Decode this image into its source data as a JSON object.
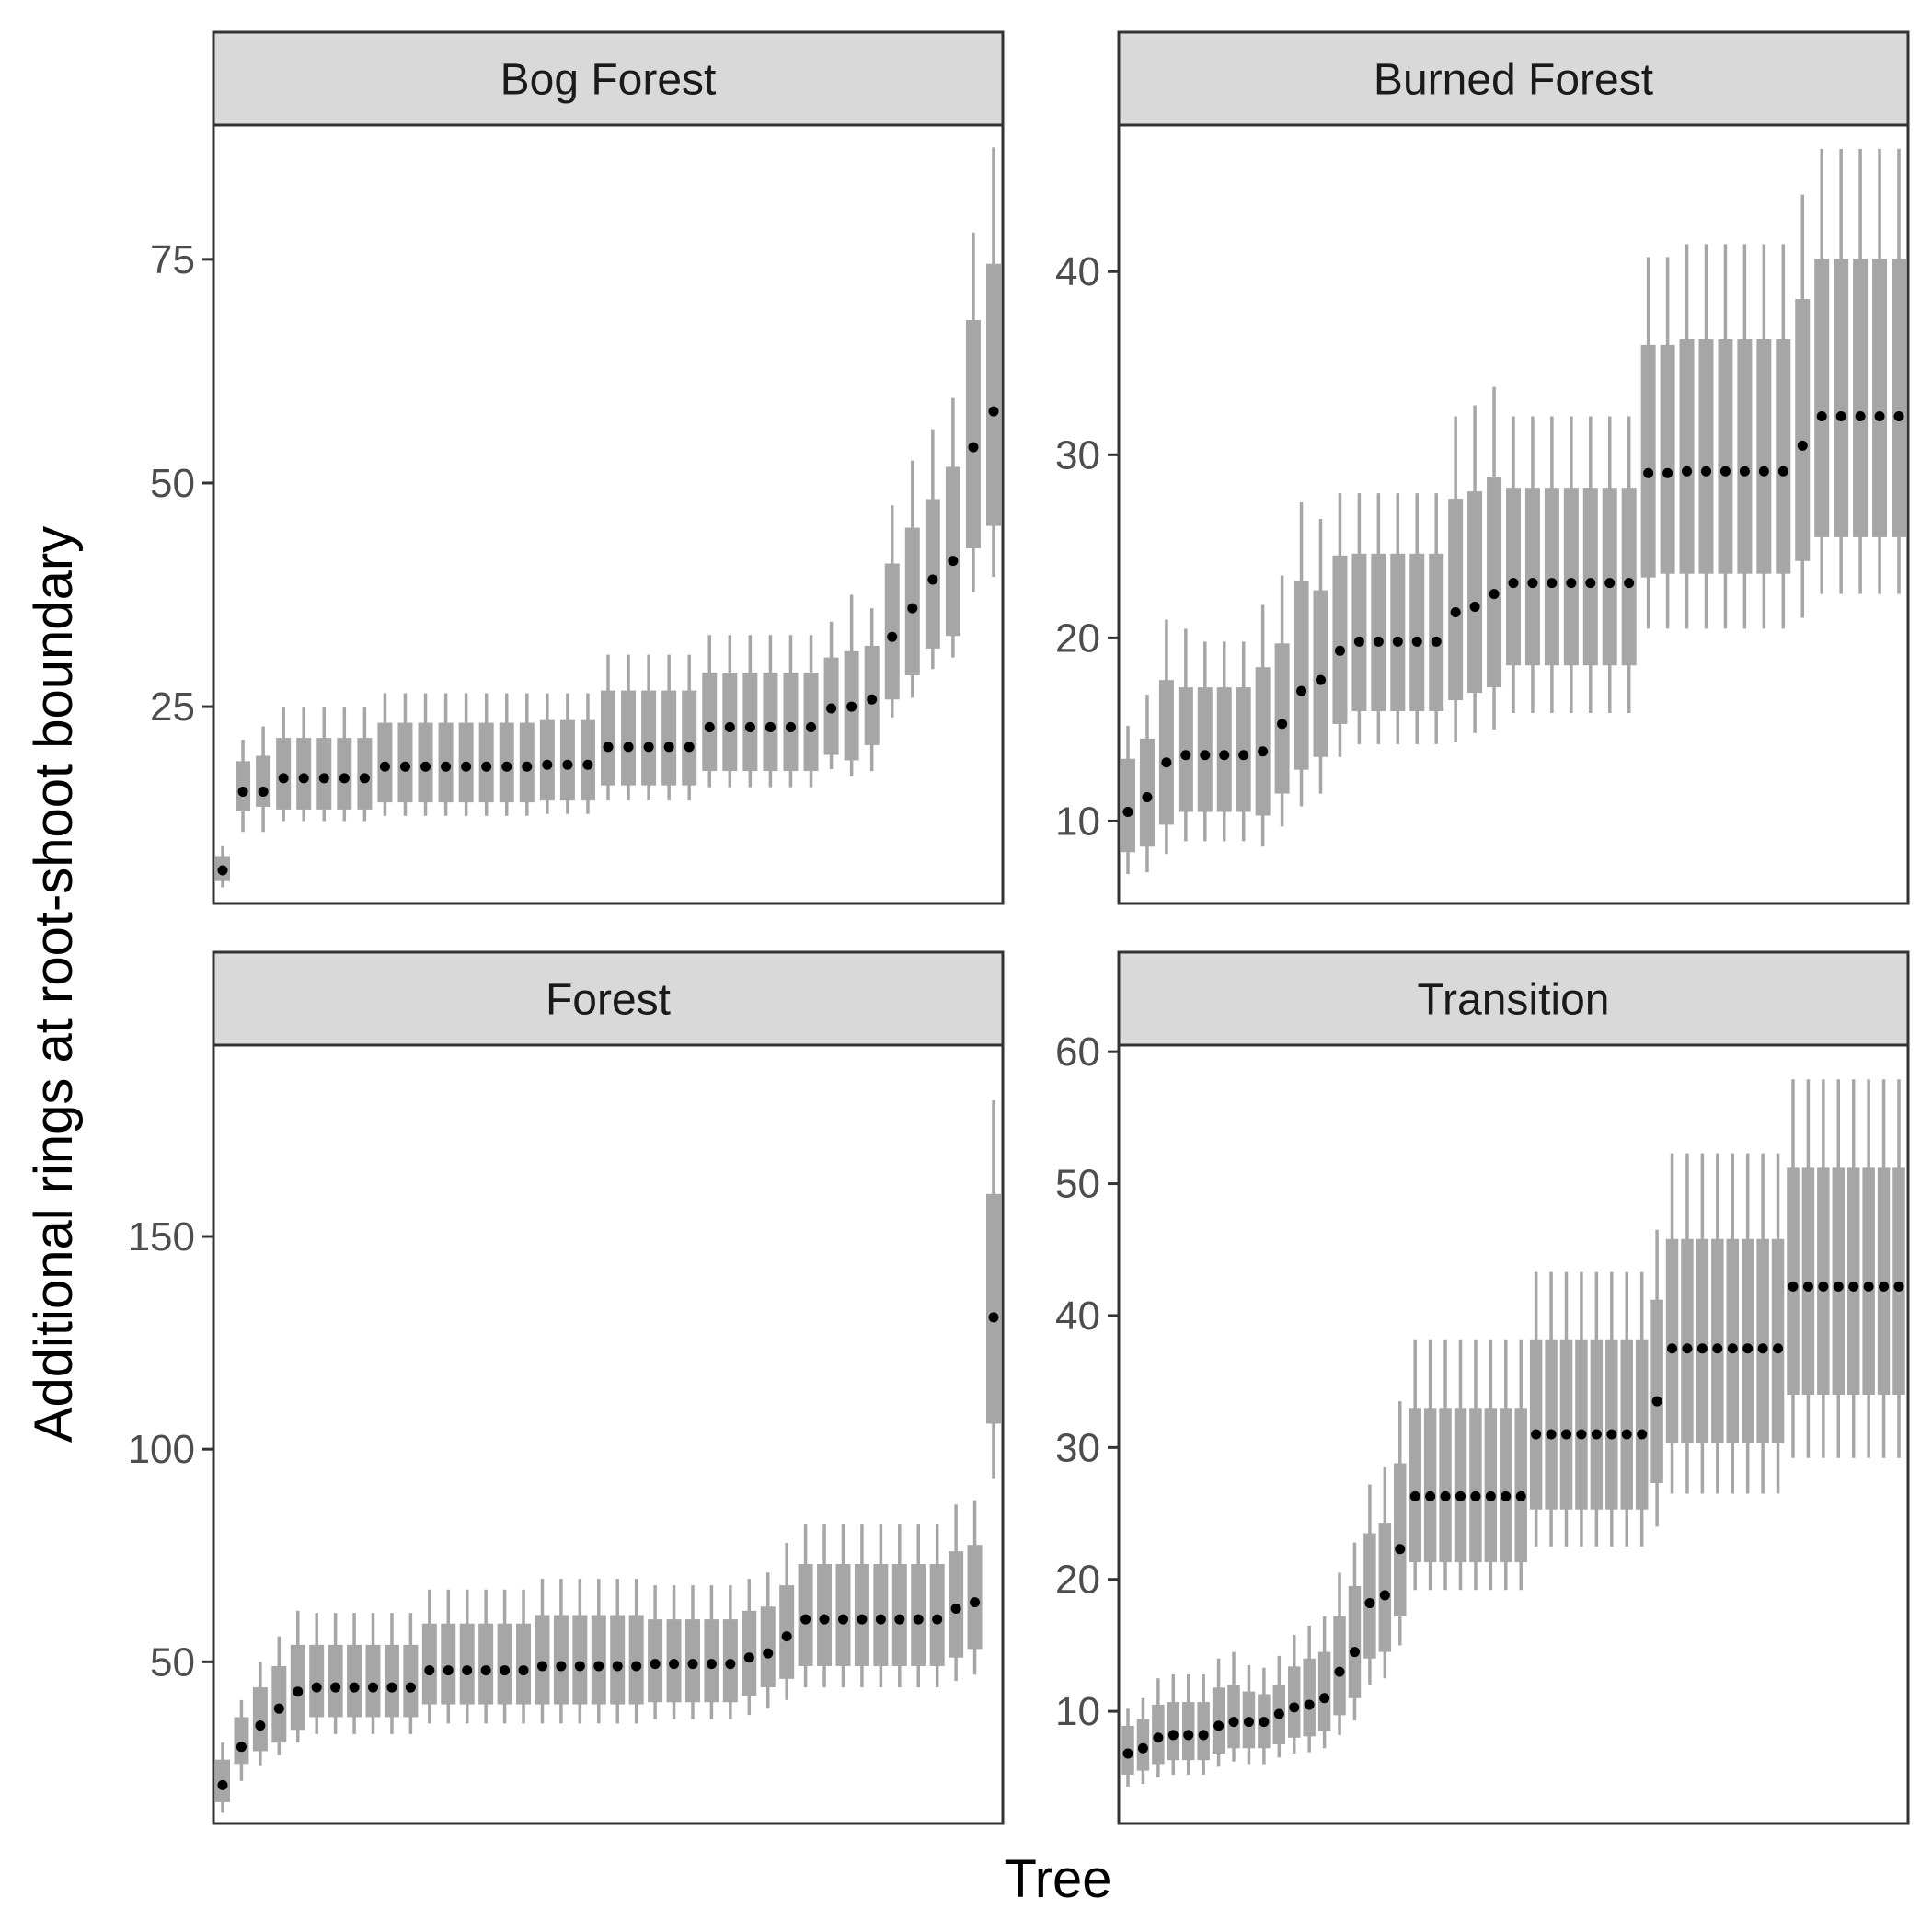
{
  "figure": {
    "x_title": "Tree",
    "y_title": "Additional rings at root-shoot boundary"
  },
  "colors": {
    "range_bar": "#a6a6a6",
    "point": "#000000",
    "strip_fill": "#d9d9d9",
    "panel_border": "#333333"
  },
  "chart_data": [
    {
      "type": "pointrange",
      "title": "Bog Forest",
      "ylim": [
        3,
        90
      ],
      "yticks": [
        25,
        50,
        75
      ],
      "median": [
        6.7,
        15.5,
        15.5,
        17,
        17,
        17,
        17,
        17,
        18.3,
        18.3,
        18.3,
        18.3,
        18.3,
        18.3,
        18.3,
        18.3,
        18.5,
        18.5,
        18.5,
        20.5,
        20.5,
        20.5,
        20.5,
        20.5,
        22.7,
        22.7,
        22.7,
        22.7,
        22.7,
        22.7,
        24.8,
        25,
        25.8,
        32.8,
        36,
        39.2,
        41.3,
        54,
        58
      ],
      "inner_low": [
        5.5,
        13.3,
        13.8,
        13.5,
        13.5,
        13.5,
        13.5,
        13.5,
        14.3,
        14.3,
        14.3,
        14.3,
        14.3,
        14.3,
        14.3,
        14.3,
        14.5,
        14.5,
        14.5,
        16.2,
        16.2,
        16.2,
        16.2,
        16.2,
        17.8,
        17.8,
        17.8,
        17.8,
        17.8,
        17.8,
        19.6,
        19,
        20.7,
        25.8,
        28.5,
        31.5,
        32.9,
        42.7,
        45.2
      ],
      "inner_high": [
        8.3,
        18.9,
        19.5,
        21.5,
        21.5,
        21.5,
        21.5,
        21.5,
        23.2,
        23.2,
        23.2,
        23.2,
        23.2,
        23.2,
        23.2,
        23.2,
        23.5,
        23.5,
        23.5,
        26.8,
        26.8,
        26.8,
        26.8,
        26.8,
        28.8,
        28.8,
        28.8,
        28.8,
        28.8,
        28.8,
        30.5,
        31.2,
        31.8,
        41,
        45,
        48.2,
        51.8,
        68.2,
        74.5
      ],
      "outer_low": [
        4.8,
        11,
        11,
        12.2,
        12.2,
        12.2,
        12.2,
        12.2,
        12.8,
        12.8,
        12.8,
        12.8,
        12.8,
        12.8,
        12.8,
        12.8,
        13,
        13,
        13,
        14.5,
        14.5,
        14.5,
        14.5,
        14.5,
        16,
        16,
        16,
        16,
        16,
        16,
        18,
        17.2,
        17.8,
        23.8,
        26,
        29.2,
        30.5,
        37.8,
        39.5
      ],
      "outer_high": [
        9.4,
        21.3,
        22.8,
        25,
        25,
        25,
        25,
        25,
        26.5,
        26.5,
        26.5,
        26.5,
        26.5,
        26.5,
        26.5,
        26.5,
        26.5,
        26.5,
        26.5,
        30.8,
        30.8,
        30.8,
        30.8,
        30.8,
        33,
        33,
        33,
        33,
        33,
        33,
        34.5,
        37.5,
        36,
        47.5,
        52.5,
        56,
        59.5,
        78,
        87.5
      ]
    },
    {
      "type": "pointrange",
      "title": "Burned Forest",
      "ylim": [
        5.5,
        48
      ],
      "yticks": [
        10,
        20,
        30,
        40
      ],
      "median": [
        10.5,
        11.3,
        13.2,
        13.6,
        13.6,
        13.6,
        13.6,
        13.8,
        15.3,
        17.1,
        17.7,
        19.3,
        19.8,
        19.8,
        19.8,
        19.8,
        19.8,
        21.4,
        21.7,
        22.4,
        23,
        23,
        23,
        23,
        23,
        23,
        23,
        29,
        29,
        29.1,
        29.1,
        29.1,
        29.1,
        29.1,
        29.1,
        30.5,
        32.1,
        32.1,
        32.1,
        32.1,
        32.1
      ],
      "inner_low": [
        8.3,
        8.6,
        9.8,
        10.5,
        10.5,
        10.5,
        10.5,
        10.3,
        11.5,
        12.8,
        13.5,
        15.3,
        16,
        16,
        16,
        16,
        16,
        16.6,
        17,
        17.3,
        18.5,
        18.5,
        18.5,
        18.5,
        18.5,
        18.5,
        18.5,
        23.3,
        23.5,
        23.5,
        23.5,
        23.5,
        23.5,
        23.5,
        23.5,
        24.2,
        25.5,
        25.5,
        25.5,
        25.5,
        25.5
      ],
      "inner_high": [
        13.4,
        14.5,
        17.7,
        17.3,
        17.3,
        17.3,
        17.3,
        18.4,
        19.7,
        23.1,
        22.6,
        24.5,
        24.6,
        24.6,
        24.6,
        24.6,
        24.6,
        27.6,
        28,
        28.8,
        28.2,
        28.2,
        28.2,
        28.2,
        28.2,
        28.2,
        28.2,
        36,
        36,
        36.3,
        36.3,
        36.3,
        36.3,
        36.3,
        36.3,
        38.5,
        40.7,
        40.7,
        40.7,
        40.7,
        40.7
      ],
      "outer_low": [
        7.1,
        7.2,
        8.2,
        8.9,
        8.9,
        8.9,
        8.9,
        8.6,
        9.7,
        10.8,
        11.5,
        13.5,
        14.2,
        14.2,
        14.2,
        14.2,
        14.2,
        14.3,
        14.8,
        15,
        15.9,
        15.9,
        15.9,
        15.9,
        15.9,
        15.9,
        15.9,
        20.5,
        20.5,
        20.5,
        20.5,
        20.5,
        20.5,
        20.5,
        20.5,
        21.1,
        22.4,
        22.4,
        22.4,
        22.4,
        22.4
      ],
      "outer_high": [
        15.2,
        16.9,
        21,
        20.5,
        19.8,
        19.8,
        19.8,
        21.8,
        23.4,
        27.4,
        26.5,
        27.9,
        27.9,
        27.9,
        27.9,
        27.9,
        27.9,
        32.1,
        32.7,
        33.7,
        32.1,
        32.1,
        32.1,
        32.1,
        32.1,
        32.1,
        32.1,
        40.8,
        40.8,
        41.5,
        41.5,
        41.5,
        41.5,
        41.5,
        41.5,
        44.2,
        46.7,
        46.7,
        46.7,
        46.7,
        46.7
      ]
    },
    {
      "type": "pointrange",
      "title": "Forest",
      "ylim": [
        12,
        195
      ],
      "yticks": [
        50,
        100,
        150
      ],
      "median": [
        21,
        30,
        35,
        39,
        43,
        44,
        44,
        44,
        44,
        44,
        44,
        48,
        48,
        48,
        48,
        48,
        48,
        49,
        49,
        49,
        49,
        49,
        49,
        49.5,
        49.5,
        49.5,
        49.5,
        49.5,
        51,
        52,
        56,
        60,
        60,
        60,
        60,
        60,
        60,
        60,
        60,
        62.5,
        64,
        131
      ],
      "inner_low": [
        17,
        26,
        29,
        31,
        34,
        37,
        37,
        37,
        37,
        37,
        37,
        40,
        40,
        40,
        40,
        40,
        40,
        40,
        40,
        40,
        40,
        40,
        40,
        40.5,
        40.5,
        40.5,
        40.5,
        40.5,
        42,
        44,
        46,
        49,
        49,
        49,
        49,
        49,
        49,
        49,
        49,
        51,
        53,
        106
      ],
      "inner_high": [
        27,
        37,
        44,
        49,
        54,
        54,
        54,
        54,
        54,
        54,
        54,
        59,
        59,
        59,
        59,
        59,
        59,
        61,
        61,
        61,
        61,
        61,
        61,
        60,
        60,
        60,
        60,
        60,
        62,
        63,
        68,
        73,
        73,
        73,
        73,
        73,
        73,
        73,
        73,
        76,
        77.5,
        160
      ],
      "outer_low": [
        14.5,
        22,
        25.5,
        28,
        31,
        33,
        33,
        33,
        33,
        33,
        33,
        35.5,
        35.5,
        35.5,
        35.5,
        35.5,
        35.5,
        35.5,
        35.5,
        35.5,
        35.5,
        35.5,
        35.5,
        36.5,
        36.5,
        36.5,
        36.5,
        36.5,
        37.5,
        39,
        41,
        44,
        44,
        44,
        44,
        44,
        44,
        44,
        44,
        45.5,
        47,
        93
      ],
      "outer_high": [
        31,
        41,
        50,
        56,
        62,
        61.5,
        61.5,
        61.5,
        61.5,
        61.5,
        61.5,
        67,
        67,
        67,
        67,
        67,
        67,
        69.5,
        69.5,
        69.5,
        69.5,
        69.5,
        69.5,
        68,
        68,
        68,
        68,
        68,
        69.5,
        71,
        78,
        82.5,
        82.5,
        82.5,
        82.5,
        82.5,
        82.5,
        82.5,
        82.5,
        87,
        88,
        182
      ]
    },
    {
      "type": "pointrange",
      "title": "Transition",
      "ylim": [
        1.5,
        60.5
      ],
      "yticks": [
        10,
        20,
        30,
        40,
        50,
        60
      ],
      "median": [
        6.8,
        7.2,
        8,
        8.2,
        8.2,
        8.2,
        8.9,
        9.2,
        9.2,
        9.2,
        9.8,
        10.3,
        10.5,
        11,
        13,
        14.5,
        18.2,
        18.8,
        22.3,
        26.3,
        26.3,
        26.3,
        26.3,
        26.3,
        26.3,
        26.3,
        26.3,
        31,
        31,
        31,
        31,
        31,
        31,
        31,
        31,
        33.5,
        37.5,
        37.5,
        37.5,
        37.5,
        37.5,
        37.5,
        37.5,
        37.5,
        42.2,
        42.2,
        42.2,
        42.2,
        42.2,
        42.2,
        42.2,
        42.2
      ],
      "inner_low": [
        5.2,
        5.5,
        6,
        6.3,
        6.3,
        6.3,
        6.8,
        7.2,
        7.2,
        7.2,
        7.5,
        8,
        8.1,
        8.5,
        9.7,
        11,
        14,
        14.5,
        17.2,
        21.3,
        21.3,
        21.3,
        21.3,
        21.3,
        21.3,
        21.3,
        21.3,
        25.3,
        25.3,
        25.3,
        25.3,
        25.3,
        25.3,
        25.3,
        25.3,
        27.3,
        30.3,
        30.3,
        30.3,
        30.3,
        30.3,
        30.3,
        30.3,
        30.3,
        34,
        34,
        34,
        34,
        34,
        34,
        34,
        34
      ],
      "inner_high": [
        8.9,
        9.4,
        10.5,
        10.7,
        10.7,
        10.7,
        11.8,
        12,
        11.5,
        11.3,
        12,
        13.4,
        14,
        14.5,
        17.2,
        19.5,
        23.5,
        24.3,
        28.8,
        33,
        33,
        33,
        33,
        33,
        33,
        33,
        33,
        38.2,
        38.2,
        38.2,
        38.2,
        38.2,
        38.2,
        38.2,
        38.2,
        41.2,
        45.8,
        45.8,
        45.8,
        45.8,
        45.8,
        45.8,
        45.8,
        45.8,
        51.2,
        51.2,
        51.2,
        51.2,
        51.2,
        51.2,
        51.2,
        51.2
      ],
      "outer_low": [
        4.3,
        4.5,
        5,
        5.2,
        5.2,
        5.2,
        5.8,
        6.2,
        6,
        6,
        6.5,
        6.8,
        6.9,
        7.2,
        8.2,
        9.3,
        12,
        12.5,
        15,
        19.2,
        19.2,
        19.2,
        19.2,
        19.2,
        19.2,
        19.2,
        19.2,
        22.5,
        22.5,
        22.5,
        22.5,
        22.5,
        22.5,
        22.5,
        22.5,
        24,
        26.5,
        26.5,
        26.5,
        26.5,
        26.5,
        26.5,
        26.5,
        26.5,
        29.2,
        29.2,
        29.2,
        29.2,
        29.2,
        29.2,
        29.2,
        29.2
      ],
      "outer_high": [
        10.2,
        11,
        12.5,
        12.8,
        12.8,
        12.8,
        14,
        14.5,
        13.5,
        13.3,
        14.2,
        15.8,
        16.5,
        17.2,
        20.5,
        22.8,
        27.2,
        28.5,
        33.5,
        38.2,
        38.2,
        38.2,
        38.2,
        38.2,
        38.2,
        38.2,
        38.2,
        43.3,
        43.3,
        43.3,
        43.3,
        43.3,
        43.3,
        43.3,
        43.3,
        46.5,
        52.3,
        52.3,
        52.3,
        52.3,
        52.3,
        52.3,
        52.3,
        52.3,
        57.9,
        57.9,
        57.9,
        57.9,
        57.9,
        57.9,
        57.9,
        57.9
      ]
    }
  ]
}
